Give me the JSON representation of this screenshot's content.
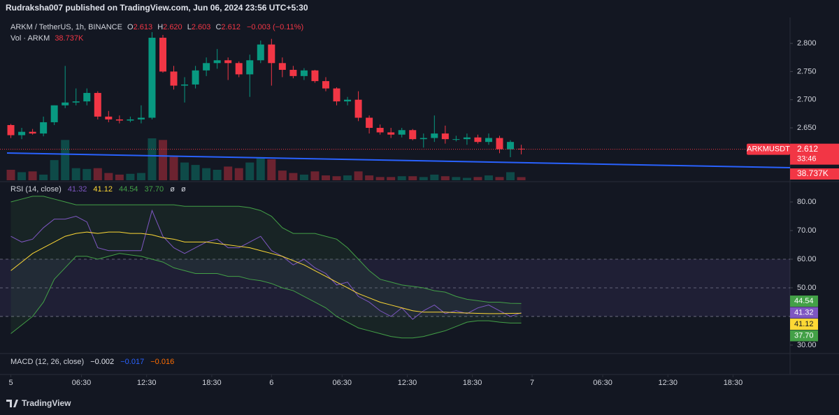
{
  "header": {
    "publisher": "Rudraksha007 published on TradingView.com, Jun 06, 2024 23:56 UTC+5:30",
    "symbol": "ARKM / TetherUS, 1h, BINANCE",
    "o_label": "O",
    "o": "2.613",
    "h_label": "H",
    "h": "2.620",
    "l_label": "L",
    "l": "2.603",
    "c_label": "C",
    "c": "2.612",
    "change": "−0.003 (−0.11%)",
    "vol_label": "Vol · ARKM",
    "vol_value": "38.737K",
    "symbol_tag": "ARKMUSDT",
    "countdown": "33:46"
  },
  "chart_data": [
    {
      "type": "candlestick",
      "x": [
        0,
        1,
        2,
        3,
        4,
        5,
        6,
        7,
        8,
        9,
        10,
        11,
        12,
        13,
        14,
        15,
        16,
        17,
        18,
        19,
        20,
        21,
        22,
        23,
        24,
        25,
        26,
        27,
        28,
        29,
        30,
        31,
        32,
        33,
        34,
        35,
        36,
        37,
        38,
        39,
        40,
        41,
        42,
        43,
        44,
        45,
        46,
        47
      ],
      "open": [
        2.655,
        2.637,
        2.643,
        2.64,
        2.66,
        2.69,
        2.695,
        2.697,
        2.712,
        2.67,
        2.665,
        2.663,
        2.665,
        2.668,
        2.81,
        2.75,
        2.725,
        2.727,
        2.752,
        2.765,
        2.77,
        2.765,
        2.745,
        2.77,
        2.798,
        2.765,
        2.753,
        2.742,
        2.752,
        2.733,
        2.72,
        2.697,
        2.7,
        2.668,
        2.65,
        2.642,
        2.638,
        2.646,
        2.63,
        2.632,
        2.64,
        2.63,
        2.63,
        2.633,
        2.625,
        2.632,
        2.612,
        2.613
      ],
      "high": [
        2.657,
        2.65,
        2.648,
        2.67,
        2.69,
        2.76,
        2.72,
        2.72,
        2.715,
        2.68,
        2.672,
        2.67,
        2.69,
        2.82,
        2.815,
        2.76,
        2.74,
        2.76,
        2.775,
        2.79,
        2.775,
        2.768,
        2.78,
        2.805,
        2.808,
        2.775,
        2.76,
        2.756,
        2.753,
        2.74,
        2.722,
        2.705,
        2.715,
        2.672,
        2.656,
        2.65,
        2.65,
        2.648,
        2.64,
        2.672,
        2.654,
        2.636,
        2.64,
        2.638,
        2.64,
        2.636,
        2.628,
        2.62
      ],
      "low": [
        2.632,
        2.63,
        2.638,
        2.635,
        2.655,
        2.685,
        2.69,
        2.69,
        2.665,
        2.66,
        2.658,
        2.66,
        2.658,
        2.665,
        2.748,
        2.718,
        2.695,
        2.72,
        2.742,
        2.755,
        2.735,
        2.74,
        2.705,
        2.765,
        2.725,
        2.74,
        2.738,
        2.735,
        2.73,
        2.715,
        2.69,
        2.69,
        2.662,
        2.64,
        2.638,
        2.632,
        2.633,
        2.628,
        2.615,
        2.625,
        2.622,
        2.626,
        2.62,
        2.622,
        2.62,
        2.605,
        2.598,
        2.603
      ],
      "close": [
        2.637,
        2.643,
        2.64,
        2.66,
        2.69,
        2.695,
        2.697,
        2.712,
        2.67,
        2.665,
        2.663,
        2.665,
        2.668,
        2.81,
        2.75,
        2.725,
        2.727,
        2.752,
        2.765,
        2.77,
        2.765,
        2.745,
        2.77,
        2.798,
        2.765,
        2.753,
        2.742,
        2.752,
        2.733,
        2.72,
        2.697,
        2.7,
        2.668,
        2.65,
        2.642,
        2.638,
        2.646,
        2.63,
        2.632,
        2.64,
        2.63,
        2.63,
        2.633,
        2.625,
        2.632,
        2.612,
        2.625,
        2.612
      ],
      "volume": [
        130000,
        100000,
        110000,
        70000,
        250000,
        500000,
        150000,
        140000,
        150000,
        90000,
        70000,
        80000,
        90000,
        520000,
        500000,
        290000,
        220000,
        190000,
        150000,
        130000,
        170000,
        150000,
        220000,
        280000,
        260000,
        120000,
        90000,
        70000,
        110000,
        60000,
        50000,
        60000,
        110000,
        60000,
        40000,
        40000,
        50000,
        50000,
        40000,
        70000,
        50000,
        40000,
        30000,
        40000,
        60000,
        40000,
        100000,
        38737
      ],
      "volume_lim": [
        0,
        2020000
      ],
      "up_color": "#089981",
      "down_color": "#f23645",
      "xlim": [
        -1,
        71.75
      ],
      "xticks": [
        {
          "value": 0,
          "label": "5"
        },
        {
          "value": 6.5,
          "label": "06:30"
        },
        {
          "value": 12.5,
          "label": "12:30"
        },
        {
          "value": 18.5,
          "label": "18:30"
        },
        {
          "value": 24,
          "label": "6"
        },
        {
          "value": 30.5,
          "label": "06:30"
        },
        {
          "value": 36.5,
          "label": "12:30"
        },
        {
          "value": 42.5,
          "label": "18:30"
        },
        {
          "value": 48,
          "label": "7"
        },
        {
          "value": 54.5,
          "label": "06:30"
        },
        {
          "value": 60.5,
          "label": "12:30"
        },
        {
          "value": 66.5,
          "label": "18:30"
        }
      ],
      "ylim": [
        2.557,
        2.846
      ],
      "yticks": [
        {
          "value": 2.8,
          "label": "2.800"
        },
        {
          "value": 2.75,
          "label": "2.750"
        },
        {
          "value": 2.7,
          "label": "2.700"
        },
        {
          "value": 2.65,
          "label": "2.650"
        }
      ]
    },
    {
      "type": "line",
      "title": "RSI (14, close)",
      "series": [
        {
          "name": "RSI",
          "color": "#7e57c2",
          "values": [
            68,
            66,
            67,
            71,
            74,
            74,
            75,
            73,
            64,
            63,
            63,
            63,
            63,
            77,
            68,
            64,
            62,
            64,
            66,
            67,
            64,
            64,
            66,
            68,
            63,
            61,
            58,
            60,
            57,
            55,
            51,
            52,
            47,
            45,
            42,
            40,
            43,
            39,
            42,
            44,
            41,
            42,
            41,
            43,
            44,
            42,
            40,
            41.32
          ]
        },
        {
          "name": "RSI-based MA",
          "color": "#fdd835",
          "values": [
            56,
            59,
            62,
            64,
            66,
            68,
            69,
            69.5,
            69,
            69.5,
            69.5,
            69,
            69,
            68.5,
            67.5,
            67,
            66,
            66,
            66,
            65.5,
            65,
            64.5,
            64,
            63,
            62,
            61,
            59.5,
            58,
            56,
            54,
            52,
            50,
            48,
            46.5,
            45,
            44,
            43,
            42,
            41.5,
            41.5,
            41.5,
            41.3,
            41.2,
            41.1,
            41,
            41,
            41.1,
            41.12
          ]
        },
        {
          "name": "Upper Bollinger Band",
          "color": "#43a047",
          "values": [
            80,
            81,
            82,
            82,
            81,
            80,
            79,
            79,
            79,
            79,
            79,
            79,
            79,
            79,
            79,
            79,
            78.5,
            78.5,
            78.5,
            78.5,
            78.5,
            78.5,
            78,
            77,
            75,
            71,
            69,
            69,
            69,
            68,
            67,
            64,
            60,
            56,
            53,
            52,
            51,
            50.5,
            50,
            49,
            48.5,
            47,
            46,
            45.5,
            45,
            45,
            44.6,
            44.54
          ]
        },
        {
          "name": "Lower Bollinger Band",
          "color": "#43a047",
          "values": [
            34,
            37,
            40,
            45,
            53,
            57,
            61,
            61,
            60,
            61,
            62,
            61.5,
            61,
            60,
            59,
            57,
            56,
            55,
            55,
            55,
            54,
            54,
            53,
            52.5,
            51.5,
            50,
            49,
            47,
            45,
            43,
            40,
            38,
            36,
            35,
            34,
            33,
            32.5,
            32.5,
            33,
            34,
            35,
            36.5,
            38,
            38.5,
            38.5,
            38,
            37.7,
            37.7
          ],
          "last_value_label": "37.70"
        }
      ],
      "extras": [
        "ø",
        "ø"
      ],
      "band_lines": [
        60,
        50,
        40
      ],
      "ylim": [
        27.3,
        86.6
      ],
      "yticks": [
        {
          "value": 80,
          "label": "80.00"
        },
        {
          "value": 70,
          "label": "70.00"
        },
        {
          "value": 60,
          "label": "60.00"
        },
        {
          "value": 50,
          "label": "50.00"
        },
        {
          "value": 30,
          "label": "30.00"
        }
      ]
    }
  ],
  "macd": {
    "title": "MACD (12, 26, close)",
    "values": [
      "−0.002",
      "−0.017",
      "−0.016"
    ]
  },
  "footer": "TradingView"
}
